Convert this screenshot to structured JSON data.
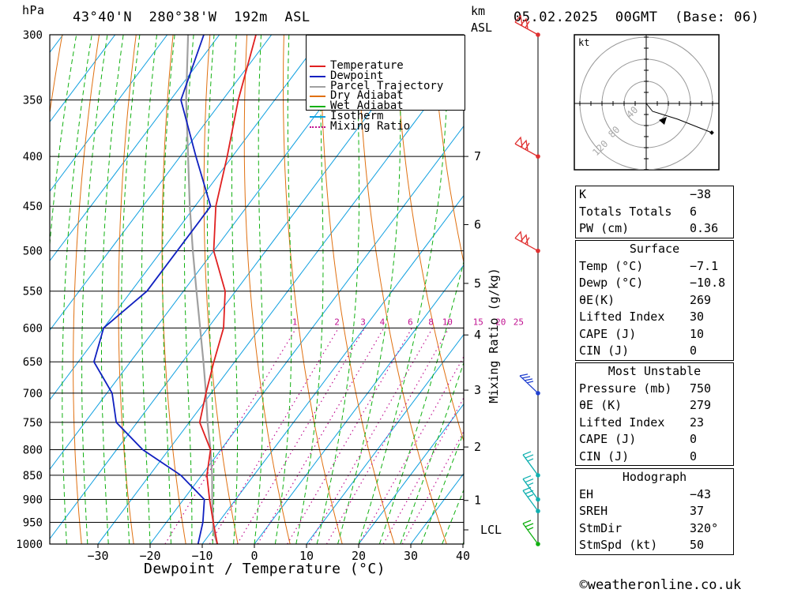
{
  "header": {
    "pressure_unit": "hPa",
    "location": "43°40'N  280°38'W  192m  ASL",
    "height_unit_line1": "km",
    "height_unit_line2": "ASL",
    "datetime": "05.02.2025  00GMT  (Base: 06)"
  },
  "footer": {
    "copyright_symbol": "©",
    "site": "weatheronline.co.uk"
  },
  "colors": {
    "temperature": "#e02020",
    "dewpoint": "#1020c0",
    "parcel": "#a0a0a0",
    "dry_adiabat": "#e07010",
    "wet_adiabat": "#10b010",
    "isotherm": "#10a0e0",
    "mixing_ratio": "#c01090",
    "wind_high": "#e03030",
    "wind_mid": "#2040d0",
    "wind_low": "#10b0b0",
    "wind_surface": "#10b010"
  },
  "legend": {
    "items": [
      {
        "label": "Temperature",
        "color": "#e02020",
        "style": "solid"
      },
      {
        "label": "Dewpoint",
        "color": "#1020c0",
        "style": "solid"
      },
      {
        "label": "Parcel Trajectory",
        "color": "#a0a0a0",
        "style": "solid"
      },
      {
        "label": "Dry Adiabat",
        "color": "#e07010",
        "style": "solid"
      },
      {
        "label": "Wet Adiabat",
        "color": "#10b010",
        "style": "solid"
      },
      {
        "label": "Isotherm",
        "color": "#10a0e0",
        "style": "solid"
      },
      {
        "label": "Mixing Ratio",
        "color": "#c01090",
        "style": "dotted"
      }
    ]
  },
  "chart_data": {
    "type": "skew-t",
    "xlabel": "Dewpoint / Temperature (°C)",
    "ylabel_right": "Mixing Ratio (g/kg)",
    "pressure_levels": [
      300,
      350,
      400,
      450,
      500,
      550,
      600,
      650,
      700,
      750,
      800,
      850,
      900,
      950,
      1000
    ],
    "pressure_labels": [
      "300",
      "350",
      "400",
      "450",
      "500",
      "550",
      "600",
      "650",
      "700",
      "750",
      "800",
      "850",
      "900",
      "950",
      "1000"
    ],
    "temperature_ticks": [
      -30,
      -20,
      -10,
      0,
      10,
      20,
      30,
      40
    ],
    "temperature_tick_labels": [
      "−30",
      "−20",
      "−10",
      "0",
      "10",
      "20",
      "30",
      "40"
    ],
    "xlim": [
      -40,
      40
    ],
    "ylim": [
      1000,
      300
    ],
    "height_ticks": [
      {
        "label": "7",
        "pressure": 400
      },
      {
        "label": "6",
        "pressure": 470
      },
      {
        "label": "5",
        "pressure": 540
      },
      {
        "label": "4",
        "pressure": 610
      },
      {
        "label": "3",
        "pressure": 695
      },
      {
        "label": "2",
        "pressure": 795
      },
      {
        "label": "1",
        "pressure": 902
      },
      {
        "label": "LCL",
        "pressure": 967
      }
    ],
    "mixing_ratio_labels": [
      "1",
      "2",
      "3",
      "4",
      "6",
      "8",
      "10",
      "15",
      "20",
      "25"
    ],
    "mixing_ratio_values": [
      1,
      2,
      3,
      4,
      6,
      8,
      10,
      15,
      20,
      25
    ],
    "mixing_ratio_label_pressure": 600,
    "series": [
      {
        "name": "Temperature",
        "pressure": [
          1000,
          950,
          900,
          850,
          800,
          750,
          700,
          650,
          600,
          550,
          500,
          450,
          400,
          350,
          300
        ],
        "values": [
          -7.1,
          -11,
          -15,
          -19,
          -22,
          -28,
          -31,
          -34,
          -37,
          -42,
          -50,
          -56,
          -61,
          -67,
          -73
        ]
      },
      {
        "name": "Dewpoint",
        "pressure": [
          1000,
          950,
          900,
          850,
          800,
          750,
          700,
          650,
          600,
          550,
          500,
          450,
          400,
          350,
          300
        ],
        "values": [
          -10.8,
          -13,
          -16,
          -24,
          -35,
          -44,
          -49,
          -57,
          -60,
          -57,
          -57,
          -57,
          -67,
          -78,
          -83
        ]
      },
      {
        "name": "Parcel Trajectory",
        "pressure": [
          1000,
          967,
          950,
          900,
          850,
          800,
          750,
          700,
          650,
          600,
          550,
          500,
          450,
          400,
          350,
          300
        ],
        "values": [
          -7.1,
          -10,
          -11,
          -14.5,
          -18,
          -22,
          -26.5,
          -31,
          -36,
          -41.5,
          -47.5,
          -54,
          -61,
          -68.5,
          -77,
          -86
        ]
      }
    ]
  },
  "wind_profile": {
    "barbs": [
      {
        "pressure": 300,
        "color_key": "wind_high"
      },
      {
        "pressure": 400,
        "color_key": "wind_high"
      },
      {
        "pressure": 500,
        "color_key": "wind_high"
      },
      {
        "pressure": 700,
        "color_key": "wind_mid"
      },
      {
        "pressure": 850,
        "color_key": "wind_low"
      },
      {
        "pressure": 900,
        "color_key": "wind_low"
      },
      {
        "pressure": 925,
        "color_key": "wind_low"
      },
      {
        "pressure": 1000,
        "color_key": "wind_surface"
      }
    ]
  },
  "hodograph": {
    "unit_label": "kt",
    "ring_labels": [
      "40",
      "80",
      "120"
    ]
  },
  "indices": {
    "basic": [
      {
        "key": "K",
        "value": "−38"
      },
      {
        "key": "Totals Totals",
        "value": "6"
      },
      {
        "key": "PW (cm)",
        "value": "0.36"
      }
    ],
    "surface": {
      "title": "Surface",
      "rows": [
        {
          "key": "Temp (°C)",
          "value": "−7.1"
        },
        {
          "key": "Dewp (°C)",
          "value": "−10.8"
        },
        {
          "key": "θE(K)",
          "value": "269"
        },
        {
          "key": "Lifted Index",
          "value": "30"
        },
        {
          "key": "CAPE (J)",
          "value": "10"
        },
        {
          "key": "CIN (J)",
          "value": "0"
        }
      ]
    },
    "most_unstable": {
      "title": "Most Unstable",
      "rows": [
        {
          "key": "Pressure (mb)",
          "value": "750"
        },
        {
          "key": "θE (K)",
          "value": "279"
        },
        {
          "key": "Lifted Index",
          "value": "23"
        },
        {
          "key": "CAPE (J)",
          "value": "0"
        },
        {
          "key": "CIN (J)",
          "value": "0"
        }
      ]
    },
    "hodograph_params": {
      "title": "Hodograph",
      "rows": [
        {
          "key": "EH",
          "value": "−43"
        },
        {
          "key": "SREH",
          "value": "37"
        },
        {
          "key": "StmDir",
          "value": "320°"
        },
        {
          "key": "StmSpd (kt)",
          "value": "50"
        }
      ]
    }
  }
}
